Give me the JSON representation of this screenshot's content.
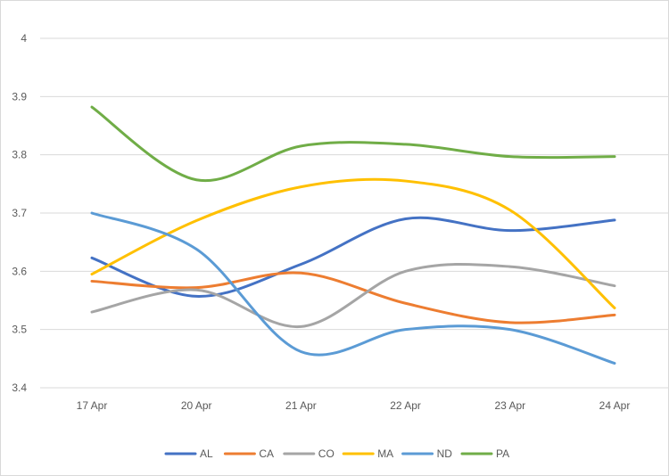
{
  "chart_data": {
    "type": "line",
    "title": "",
    "xlabel": "",
    "ylabel": "",
    "categories": [
      "17 Apr",
      "20 Apr",
      "21 Apr",
      "22 Apr",
      "23 Apr",
      "24 Apr"
    ],
    "ylim": [
      3.4,
      4.0
    ],
    "yticks": [
      "3.4",
      "3.5",
      "3.6",
      "3.7",
      "3.8",
      "3.9",
      "4"
    ],
    "grid": true,
    "smooth": true,
    "legend_position": "bottom",
    "series": [
      {
        "name": "AL",
        "color": "#4472c4",
        "values": [
          3.623,
          3.557,
          3.612,
          3.69,
          3.67,
          3.688
        ]
      },
      {
        "name": "CA",
        "color": "#ed7d31",
        "values": [
          3.583,
          3.572,
          3.597,
          3.545,
          3.512,
          3.525
        ]
      },
      {
        "name": "CO",
        "color": "#a5a5a5",
        "values": [
          3.53,
          3.568,
          3.505,
          3.6,
          3.608,
          3.575
        ]
      },
      {
        "name": "MA",
        "color": "#ffc000",
        "values": [
          3.595,
          3.687,
          3.745,
          3.755,
          3.705,
          3.537
        ]
      },
      {
        "name": "ND",
        "color": "#5b9bd5",
        "values": [
          3.7,
          3.638,
          3.462,
          3.5,
          3.5,
          3.442
        ]
      },
      {
        "name": "PA",
        "color": "#70ad47",
        "values": [
          3.882,
          3.757,
          3.815,
          3.818,
          3.797,
          3.797
        ]
      }
    ]
  }
}
